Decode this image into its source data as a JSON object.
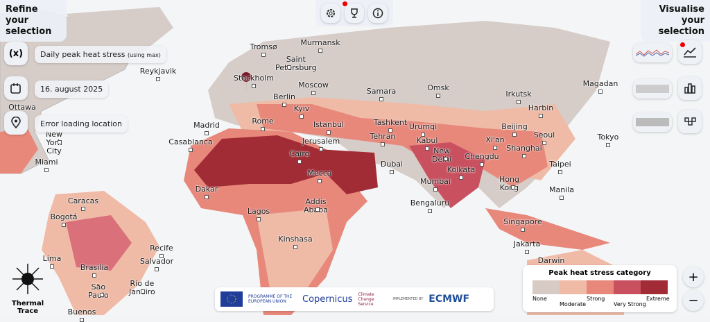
{
  "left_panel": {
    "title": "Refine your selection",
    "variable_icon": "(x)",
    "variable": "Daily peak heat stress",
    "variable_note": "(using max)",
    "date": "16. august 2025",
    "location": "Error loading location"
  },
  "right_panel": {
    "title": "Visualise your selection"
  },
  "legend": {
    "title": "Peak heat stress category",
    "categories": [
      {
        "label": "None",
        "color": "#d8cac5"
      },
      {
        "label": "Moderate",
        "color": "#efbba7"
      },
      {
        "label": "Strong",
        "color": "#e8887b"
      },
      {
        "label": "Very Strong",
        "color": "#c9515f"
      },
      {
        "label": "Extreme",
        "color": "#a22c36"
      }
    ]
  },
  "cities": [
    "Tromsø",
    "Murmansk",
    "Saint Petersburg",
    "Reykjavik",
    "Stockholm",
    "Moscow",
    "Samara",
    "Omsk",
    "Irkutsk",
    "Magadan",
    "Berlin",
    "Kyiv",
    "Harbin",
    "Ottawa",
    "Madrid",
    "Rome",
    "Istanbul",
    "Tashkent",
    "Urumqi",
    "Beijing",
    "Seoul",
    "Tokyo",
    "New York City",
    "Casablanca",
    "Jerusalem",
    "Tehran",
    "Kabul",
    "Xi'an",
    "Shanghai",
    "Cairo",
    "New Delhi",
    "Chengdu",
    "Taipei",
    "Miami",
    "Dubai",
    "Kolkata",
    "Mecca",
    "Mumbai",
    "Hong Kong",
    "Manila",
    "Dakar",
    "Caracas",
    "Bengaluru",
    "Addis Ababa",
    "Lagos",
    "Bogotá",
    "Singapore",
    "Kinshasa",
    "Recife",
    "Lima",
    "Salvador",
    "Jakarta",
    "Darwin",
    "Brasilia",
    "Rio de Janeiro",
    "São Paulo",
    "Buenos"
  ],
  "brand": "Thermal Trace",
  "footer": {
    "eu": "PROGRAMME OF THE EUROPEAN UNION",
    "copernicus": "Copernicus",
    "c3s": "Climate Change Service",
    "implemented": "IMPLEMENTED BY",
    "ecmwf": "ECMWF"
  },
  "zoom": {
    "in": "+",
    "out": "−"
  }
}
